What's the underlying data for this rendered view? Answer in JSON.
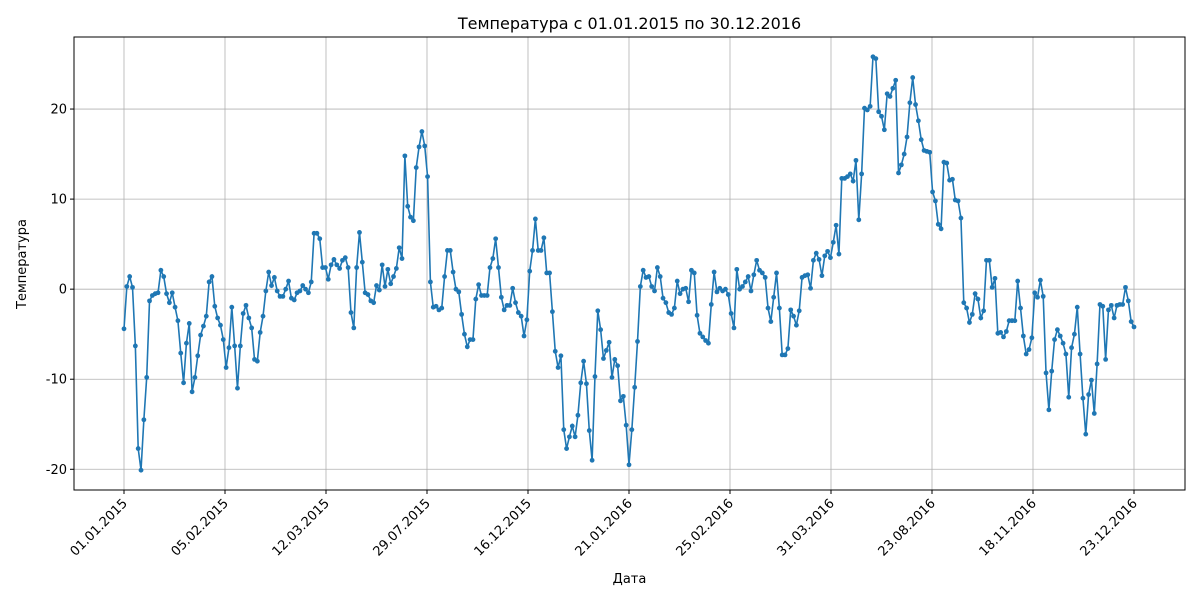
{
  "chart_data": {
    "type": "line",
    "title": "Температура с 01.01.2015 по 30.12.2016",
    "xlabel": "Дата",
    "ylabel": "Температура",
    "x_tick_labels": [
      "01.01.2015",
      "05.02.2015",
      "12.03.2015",
      "29.07.2015",
      "16.12.2015",
      "21.01.2016",
      "25.02.2016",
      "31.03.2016",
      "23.08.2016",
      "18.11.2016",
      "23.12.2016"
    ],
    "y_ticks": [
      -20,
      -10,
      0,
      10,
      20
    ],
    "ylim": [
      -22.3,
      28.0
    ],
    "grid": true,
    "color": "#1f77b4",
    "series": [
      {
        "values": [
          -4.4,
          0.3,
          1.4,
          0.2,
          -6.3,
          -17.7,
          -20.1,
          -14.5,
          -9.8,
          -1.3,
          -0.7,
          -0.5,
          -0.4,
          2.1,
          1.4,
          -0.5,
          -1.5,
          -0.4,
          -2,
          -3.5,
          -7.1,
          -10.4,
          -6,
          -3.8,
          -11.4,
          -9.8,
          -7.4,
          -5.1,
          -4.1,
          -3,
          0.8,
          1.4,
          -1.9,
          -3.2,
          -4,
          -5.6,
          -8.7,
          -6.5,
          -2,
          -6.3,
          -11,
          -6.3,
          -2.7,
          -1.8,
          -3.2,
          -4.3,
          -7.8,
          -8,
          -4.8,
          -3,
          -0.2,
          1.9,
          0.4,
          1.3,
          -0.2,
          -0.8,
          -0.8,
          0,
          0.9,
          -1,
          -1.2,
          -0.4,
          -0.2,
          0.4,
          0,
          -0.4,
          0.8,
          6.2,
          6.2,
          5.6,
          2.4,
          2.4,
          1.1,
          2.7,
          3.3,
          2.7,
          2.3,
          3.2,
          3.5,
          2.4,
          -2.6,
          -4.3,
          2.4,
          6.3,
          3,
          -0.4,
          -0.6,
          -1.3,
          -1.5,
          0.4,
          -0.1,
          2.7,
          0.3,
          2.2,
          0.6,
          1.4,
          2.3,
          4.6,
          3.4,
          14.8,
          9.2,
          8,
          7.6,
          13.5,
          15.8,
          17.5,
          15.9,
          12.5,
          0.8,
          -2,
          -1.9,
          -2.3,
          -2.1,
          1.4,
          4.3,
          4.3,
          1.9,
          0,
          -0.3,
          -2.8,
          -5,
          -6.4,
          -5.6,
          -5.6,
          -1.1,
          0.5,
          -0.7,
          -0.7,
          -0.7,
          2.4,
          3.4,
          5.6,
          2.4,
          -0.9,
          -2.3,
          -1.8,
          -1.8,
          0.1,
          -1.5,
          -2.6,
          -3,
          -5.2,
          -3.4,
          2,
          4.3,
          7.8,
          4.3,
          4.3,
          5.7,
          1.8,
          1.8,
          -2.5,
          -6.9,
          -8.7,
          -7.4,
          -15.6,
          -17.7,
          -16.4,
          -15.2,
          -16.4,
          -14,
          -10.4,
          -8,
          -10.5,
          -15.7,
          -19,
          -9.7,
          -2.4,
          -4.5,
          -7.7,
          -6.8,
          -5.9,
          -9.8,
          -7.8,
          -8.5,
          -12.4,
          -11.9,
          -15.1,
          -19.5,
          -15.6,
          -10.9,
          -5.8,
          0.3,
          2.1,
          1.3,
          1.4,
          0.3,
          -0.2,
          2.4,
          1.4,
          -1,
          -1.5,
          -2.6,
          -2.8,
          -2.1,
          0.9,
          -0.5,
          0,
          0.1,
          -1.4,
          2.1,
          1.8,
          -2.9,
          -4.9,
          -5.3,
          -5.7,
          -6,
          -1.7,
          1.9,
          -0.3,
          0.1,
          -0.2,
          0,
          -0.6,
          -2.7,
          -4.3,
          2.2,
          0,
          0.3,
          0.8,
          1.4,
          -0.2,
          1.6,
          3.2,
          2.1,
          1.8,
          1.3,
          -2.1,
          -3.6,
          -0.9,
          1.8,
          -2.1,
          -7.3,
          -7.3,
          -6.6,
          -2.3,
          -3,
          -4,
          -2.4,
          1.3,
          1.5,
          1.6,
          0.1,
          3.2,
          4,
          3.3,
          1.5,
          3.7,
          4.2,
          3.5,
          5.2,
          7.1,
          3.9,
          12.3,
          12.3,
          12.5,
          12.8,
          12,
          14.3,
          7.7,
          12.8,
          20.1,
          19.9,
          20.3,
          25.8,
          25.6,
          19.7,
          19.2,
          17.7,
          21.7,
          21.4,
          22.3,
          23.2,
          12.9,
          13.8,
          15,
          16.9,
          20.7,
          23.5,
          20.5,
          18.7,
          16.6,
          15.4,
          15.3,
          15.2,
          10.8,
          9.8,
          7.2,
          6.7,
          14.1,
          14,
          12.1,
          12.2,
          9.9,
          9.8,
          7.9,
          -1.5,
          -2.1,
          -3.7,
          -2.8,
          -0.5,
          -1.1,
          -3.2,
          -2.4,
          3.2,
          3.2,
          0.2,
          1.2,
          -4.9,
          -4.8,
          -5.3,
          -4.7,
          -3.5,
          -3.5,
          -3.5,
          0.9,
          -2.1,
          -5.2,
          -7.2,
          -6.7,
          -5.4,
          -0.4,
          -0.9,
          1.0,
          -0.8,
          -9.3,
          -13.4,
          -9.1,
          -5.6,
          -4.5,
          -5.2,
          -6.0,
          -7.2,
          -12.0,
          -6.5,
          -5.0,
          -2.0,
          -7.2,
          -12.1,
          -16.1,
          -11.7,
          -10.1,
          -13.8,
          -8.3,
          -1.7,
          -1.9,
          -7.8,
          -2.3,
          -1.8,
          -3.2,
          -1.8,
          -1.7,
          -1.7,
          0.2,
          -1.3,
          -3.6,
          -4.2
        ]
      }
    ]
  }
}
